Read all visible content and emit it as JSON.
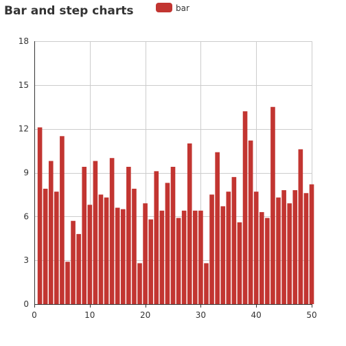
{
  "chart_data": {
    "type": "bar",
    "title": "Bar and step charts",
    "legend": {
      "entries": [
        "bar"
      ],
      "placement": "top-center"
    },
    "colors": {
      "bar": "#c23531",
      "grid": "#cccccc",
      "axis": "#333333",
      "text": "#333333"
    },
    "grid": true,
    "xlim": [
      0,
      50
    ],
    "ylim": [
      0,
      18
    ],
    "x_ticks": [
      0,
      10,
      20,
      30,
      40,
      50
    ],
    "y_ticks": [
      0,
      3,
      6,
      9,
      12,
      15,
      18
    ],
    "x": [
      1,
      2,
      3,
      4,
      5,
      6,
      7,
      8,
      9,
      10,
      11,
      12,
      13,
      14,
      15,
      16,
      17,
      18,
      19,
      20,
      21,
      22,
      23,
      24,
      25,
      26,
      27,
      28,
      29,
      30,
      31,
      32,
      33,
      34,
      35,
      36,
      37,
      38,
      39,
      40,
      41,
      42,
      43,
      44,
      45,
      46,
      47,
      48,
      49,
      50
    ],
    "series": [
      {
        "name": "bar",
        "values": [
          12.1,
          7.9,
          9.8,
          7.7,
          11.5,
          2.9,
          5.7,
          4.8,
          9.4,
          6.8,
          9.8,
          7.5,
          7.3,
          10.0,
          6.6,
          6.5,
          9.4,
          7.9,
          2.8,
          6.9,
          5.8,
          9.1,
          6.4,
          8.3,
          9.4,
          5.9,
          6.4,
          11.0,
          6.4,
          6.4,
          2.8,
          7.5,
          10.4,
          6.7,
          7.7,
          8.7,
          5.6,
          13.2,
          11.2,
          7.7,
          6.3,
          5.9,
          13.5,
          7.3,
          7.8,
          6.9,
          7.8,
          10.6,
          7.6,
          8.2
        ]
      }
    ]
  }
}
